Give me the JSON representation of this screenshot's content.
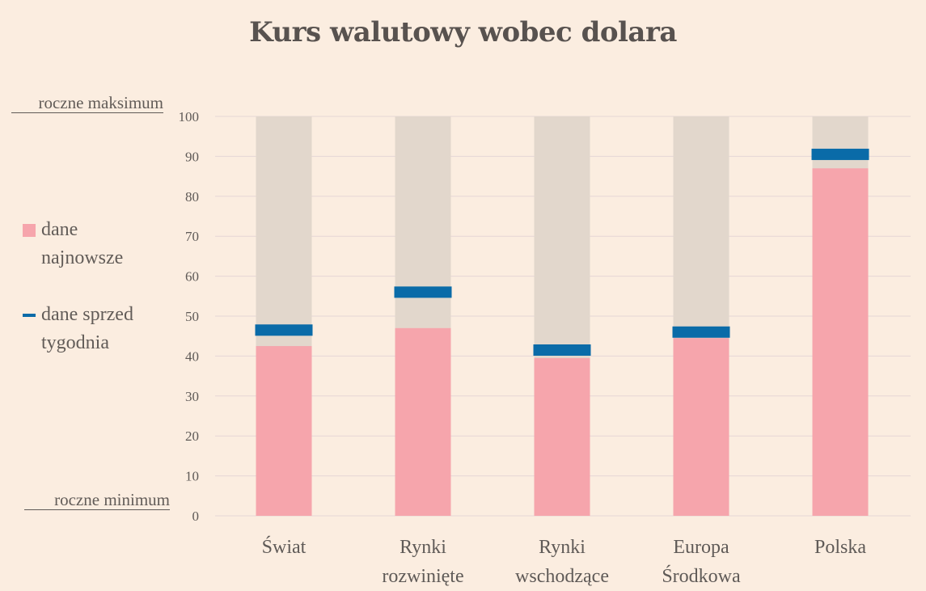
{
  "title": "Kurs walutowy wobec dolara",
  "axis_notes": {
    "max_label": "roczne maksimum",
    "min_label": "roczne minimum"
  },
  "legend": {
    "latest_line1": "dane",
    "latest_line2": "najnowsze",
    "week_ago_line1": "dane sprzed",
    "week_ago_line2": "tygodnia"
  },
  "colors": {
    "background": "#FBEDE0",
    "range_bar": "#E2D7CC",
    "latest": "#F6A5AC",
    "week_ago": "#0A6BA8",
    "grid": "#E6D6D6"
  },
  "chart_data": {
    "type": "bar",
    "title": "Kurs walutowy wobec dolara",
    "ylim": [
      0,
      100
    ],
    "yticks": [
      0,
      10,
      20,
      30,
      40,
      50,
      60,
      70,
      80,
      90,
      100
    ],
    "grid": true,
    "legend_position": "left",
    "categories": [
      [
        "Świat"
      ],
      [
        "Rynki",
        "rozwinięte"
      ],
      [
        "Rynki",
        "wschodzące"
      ],
      [
        "Europa",
        "Środkowa"
      ],
      [
        "Polska"
      ]
    ],
    "series": [
      {
        "name": "dane najnowsze",
        "values": [
          42.5,
          47,
          39.5,
          44.5,
          87
        ]
      },
      {
        "name": "dane sprzed tygodnia",
        "values": [
          46.5,
          56,
          41.5,
          46,
          90.5
        ]
      }
    ]
  }
}
